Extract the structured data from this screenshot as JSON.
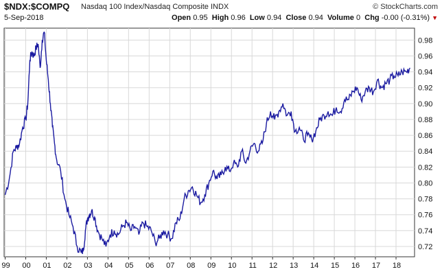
{
  "header": {
    "symbol": "$NDX:$COMPQ",
    "name": "Nasdaq 100 Index/Nasdaq Composite",
    "exchange": "INDX",
    "brand": "© StockCharts.com",
    "date": "5-Sep-2018",
    "stats": {
      "open_label": "Open",
      "open": "0.95",
      "high_label": "High",
      "high": "0.96",
      "low_label": "Low",
      "low": "0.94",
      "close_label": "Close",
      "close": "0.94",
      "volume_label": "Volume",
      "volume": "0",
      "chg_label": "Chg",
      "chg": "-0.00 (-0.31%)",
      "chg_arrow": "▼"
    }
  },
  "chart_data": {
    "type": "line",
    "title": "$NDX:$COMPQ",
    "xlabel": "",
    "ylabel": "",
    "x_ticks": [
      "99",
      "00",
      "01",
      "02",
      "03",
      "04",
      "05",
      "06",
      "07",
      "08",
      "09",
      "10",
      "11",
      "12",
      "13",
      "14",
      "15",
      "16",
      "17",
      "18"
    ],
    "y_ticks": [
      0.72,
      0.74,
      0.76,
      0.78,
      0.8,
      0.82,
      0.84,
      0.86,
      0.88,
      0.9,
      0.92,
      0.94,
      0.96,
      0.98
    ],
    "xlim": [
      1998.95,
      2018.9
    ],
    "ylim": [
      0.707,
      0.995
    ],
    "grid": true,
    "series": [
      {
        "color": "#1a1aa0",
        "x": [
          1999.0,
          1999.2,
          1999.4,
          1999.55,
          1999.7,
          1999.85,
          2000.0,
          2000.1,
          2000.2,
          2000.3,
          2000.4,
          2000.5,
          2000.6,
          2000.7,
          2000.8,
          2000.9,
          2001.0,
          2001.1,
          2001.2,
          2001.3,
          2001.4,
          2001.5,
          2001.7,
          2001.9,
          2002.1,
          2002.3,
          2002.5,
          2002.7,
          2002.8,
          2002.9,
          2003.0,
          2003.1,
          2003.2,
          2003.35,
          2003.5,
          2003.7,
          2003.9,
          2004.1,
          2004.3,
          2004.5,
          2004.7,
          2004.9,
          2005.1,
          2005.3,
          2005.5,
          2005.7,
          2005.9,
          2006.1,
          2006.3,
          2006.5,
          2006.7,
          2006.9,
          2007.1,
          2007.3,
          2007.5,
          2007.7,
          2007.9,
          2008.1,
          2008.3,
          2008.5,
          2008.7,
          2008.9,
          2009.1,
          2009.3,
          2009.5,
          2009.7,
          2009.9,
          2010.1,
          2010.3,
          2010.5,
          2010.7,
          2010.9,
          2011.1,
          2011.3,
          2011.5,
          2011.7,
          2011.9,
          2012.1,
          2012.3,
          2012.5,
          2012.7,
          2012.9,
          2013.1,
          2013.3,
          2013.5,
          2013.7,
          2013.9,
          2014.1,
          2014.3,
          2014.5,
          2014.7,
          2014.9,
          2015.1,
          2015.3,
          2015.5,
          2015.7,
          2015.9,
          2016.1,
          2016.3,
          2016.5,
          2016.7,
          2016.9,
          2017.1,
          2017.3,
          2017.5,
          2017.7,
          2017.9,
          2018.1,
          2018.3,
          2018.5,
          2018.68
        ],
        "y": [
          0.785,
          0.805,
          0.84,
          0.845,
          0.85,
          0.87,
          0.88,
          0.9,
          0.955,
          0.965,
          0.96,
          0.97,
          0.975,
          0.945,
          0.98,
          0.99,
          0.955,
          0.93,
          0.9,
          0.87,
          0.85,
          0.83,
          0.815,
          0.78,
          0.76,
          0.745,
          0.72,
          0.712,
          0.715,
          0.74,
          0.755,
          0.76,
          0.765,
          0.757,
          0.74,
          0.73,
          0.72,
          0.735,
          0.74,
          0.735,
          0.745,
          0.75,
          0.74,
          0.745,
          0.735,
          0.75,
          0.745,
          0.74,
          0.725,
          0.73,
          0.74,
          0.735,
          0.73,
          0.75,
          0.755,
          0.78,
          0.79,
          0.795,
          0.785,
          0.775,
          0.785,
          0.8,
          0.815,
          0.805,
          0.81,
          0.82,
          0.815,
          0.825,
          0.82,
          0.84,
          0.825,
          0.84,
          0.85,
          0.84,
          0.85,
          0.875,
          0.89,
          0.88,
          0.89,
          0.9,
          0.885,
          0.89,
          0.865,
          0.87,
          0.855,
          0.86,
          0.855,
          0.865,
          0.88,
          0.885,
          0.89,
          0.885,
          0.895,
          0.89,
          0.905,
          0.905,
          0.915,
          0.92,
          0.905,
          0.915,
          0.92,
          0.915,
          0.93,
          0.92,
          0.925,
          0.93,
          0.935,
          0.935,
          0.94,
          0.94,
          0.945
        ]
      }
    ]
  }
}
